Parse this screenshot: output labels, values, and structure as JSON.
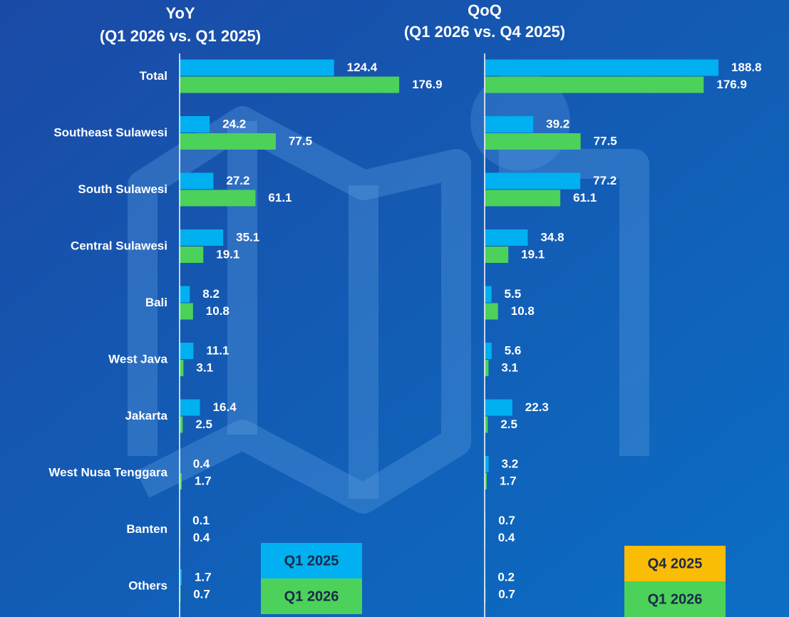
{
  "chart_data": [
    {
      "type": "hbar",
      "title": "YoY",
      "subtitle": "(Q1 2026 vs. Q1 2025)",
      "categories": [
        "Total",
        "Southeast Sulawesi",
        "South Sulawesi",
        "Central Sulawesi",
        "Bali",
        "West Java",
        "Jakarta",
        "West Nusa Tenggara",
        "Banten",
        "Others"
      ],
      "xlim": [
        0,
        240
      ],
      "series": [
        {
          "name": "Q1 2025",
          "color": "#00b0f0",
          "values": [
            124.4,
            24.2,
            27.2,
            35.1,
            8.2,
            11.1,
            16.4,
            0.4,
            0.1,
            1.7
          ]
        },
        {
          "name": "Q1 2026",
          "color": "#4cd15a",
          "values": [
            176.9,
            77.5,
            61.1,
            19.1,
            10.8,
            3.1,
            2.5,
            1.7,
            0.4,
            0.7
          ]
        }
      ]
    },
    {
      "type": "hbar",
      "title": "QoQ",
      "subtitle": "(Q1 2026 vs. Q4 2025)",
      "xlim": [
        0,
        240
      ],
      "series": [
        {
          "name": "Q4 2025",
          "color": "#00b0f0",
          "legend_color": "#fbbc05",
          "values": [
            188.8,
            39.2,
            77.2,
            34.8,
            5.5,
            5.6,
            22.3,
            3.2,
            0.7,
            0.2
          ]
        },
        {
          "name": "Q1 2026",
          "color": "#4cd15a",
          "values": [
            176.9,
            77.5,
            61.1,
            19.1,
            10.8,
            3.1,
            2.5,
            1.7,
            0.4,
            0.7
          ]
        }
      ]
    }
  ]
}
